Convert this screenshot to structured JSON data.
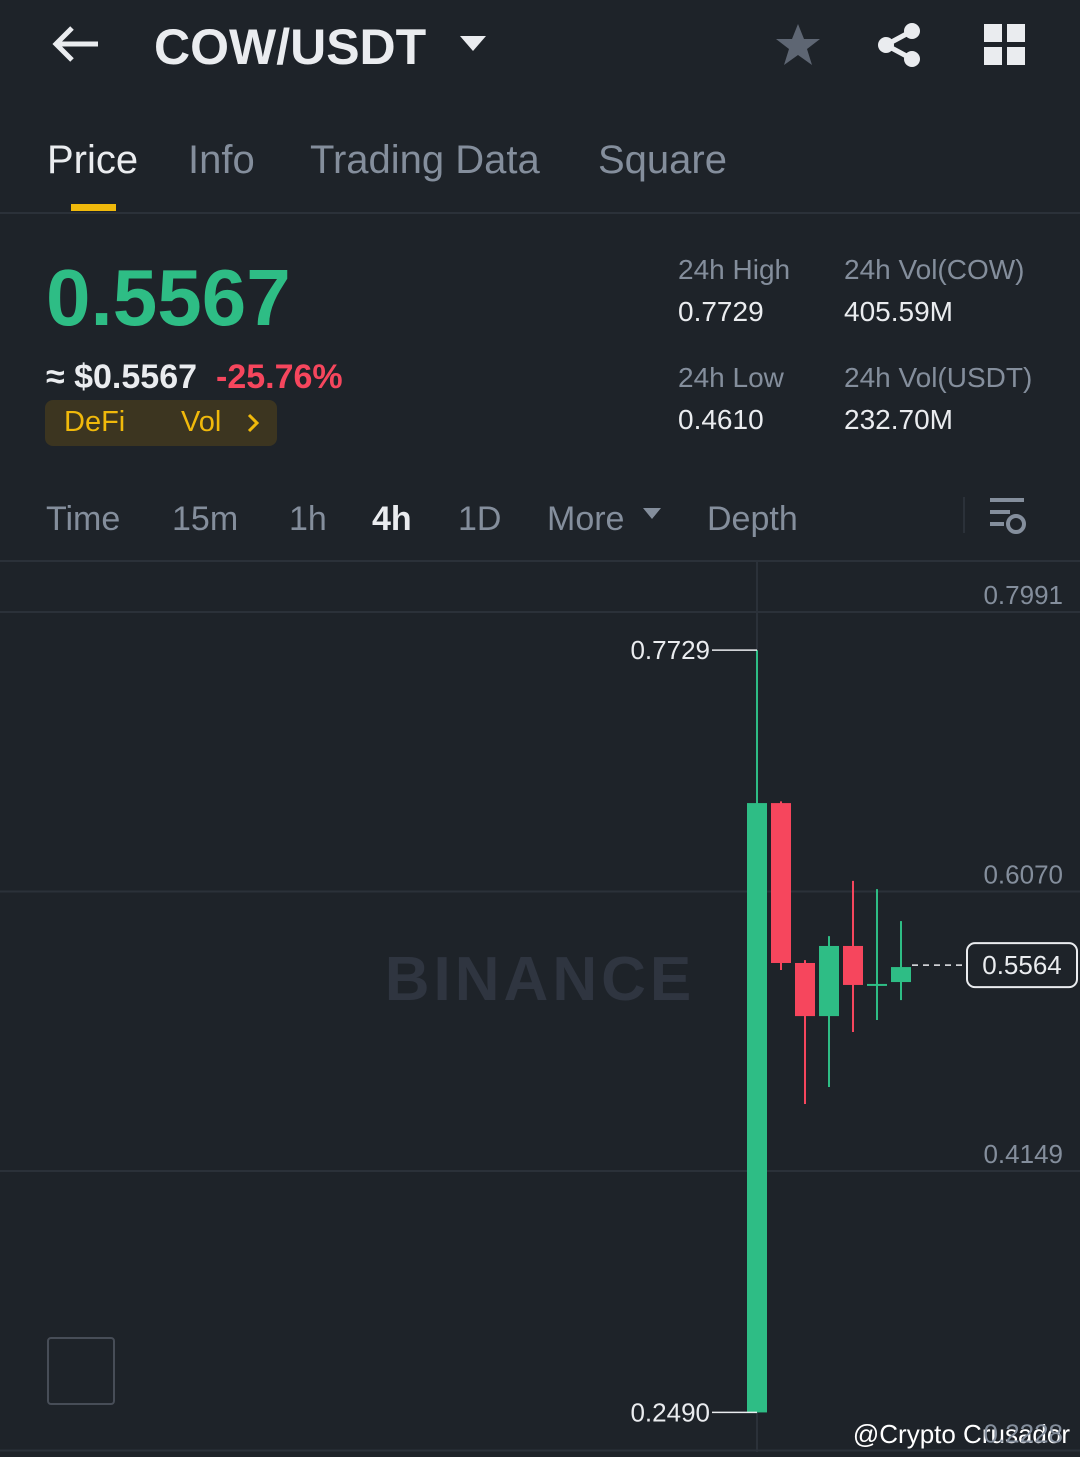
{
  "header": {
    "pair": "COW/USDT"
  },
  "tabs": [
    "Price",
    "Info",
    "Trading Data",
    "Square"
  ],
  "ticker": {
    "price": "0.5567",
    "usd": "≈ $0.5567",
    "change": "-25.76%",
    "tags": [
      "DeFi",
      "Vol"
    ]
  },
  "stats": [
    {
      "label": "24h High",
      "value": "0.7729"
    },
    {
      "label": "24h Vol(COW)",
      "value": "405.59M"
    },
    {
      "label": "24h Low",
      "value": "0.4610"
    },
    {
      "label": "24h Vol(USDT)",
      "value": "232.70M"
    }
  ],
  "intervals": [
    "Time",
    "15m",
    "1h",
    "4h",
    "1D",
    "More",
    "Depth"
  ],
  "watermarks": [
    "BINANCE",
    "@Crypto Crusador"
  ],
  "chart_data": {
    "type": "candlestick",
    "open": [
      0.249,
      0.6678,
      0.5579,
      0.5214,
      0.5696,
      0.5428,
      0.5448
    ],
    "high": [
      0.7729,
      0.669,
      0.5599,
      0.5764,
      0.6143,
      0.6087,
      0.5867
    ],
    "low": [
      0.249,
      0.5531,
      0.461,
      0.4727,
      0.5105,
      0.5187,
      0.5324
    ],
    "close": [
      0.6678,
      0.5579,
      0.5214,
      0.5696,
      0.5428,
      0.5435,
      0.5551
    ],
    "up_color": "#2ebd85",
    "down_color": "#f6465d",
    "ylim": [
      0.2218,
      0.8335
    ],
    "yticks": [
      0.2228,
      0.4149,
      {
        "value": 0.607,
        "label": "0.6070"
      },
      0.7991
    ],
    "annotations": [
      {
        "value": 0.7729,
        "label": "0.7729"
      },
      {
        "value": 0.249,
        "label": "0.2490"
      }
    ],
    "last_price": 0.5564,
    "grid": true
  }
}
